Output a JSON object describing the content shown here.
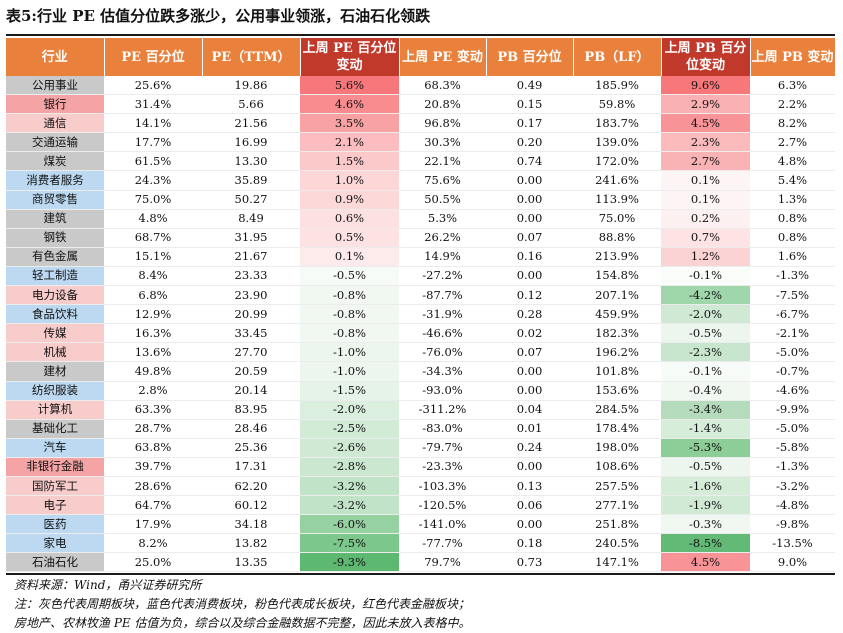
{
  "title": "表5:行业 PE 估值分位跌多涨少，公用事业领涨，石油石化领跌",
  "headers": [
    "行业",
    "PE 百分位",
    "PE（TTM）",
    "上周 PE 百分位变动",
    "上周 PE 变动",
    "PB 百分位",
    "PB（LF）",
    "上周 PB 百分位变动",
    "上周 PB 变动"
  ],
  "rows": [
    {
      "industry": "公用事业",
      "pe_pct": "25.6%",
      "pe": "19.86",
      "pe_pct_chg": "5.6%",
      "pe_chg": "68.3%",
      "pb_pct": "0.49",
      "pb": "185.9%",
      "pb_pct_chg": "9.6%",
      "pb_chg": "6.3%"
    },
    {
      "industry": "银行",
      "pe_pct": "31.4%",
      "pe": "5.66",
      "pe_pct_chg": "4.6%",
      "pe_chg": "20.8%",
      "pb_pct": "0.15",
      "pb": "59.8%",
      "pb_pct_chg": "2.9%",
      "pb_chg": "2.2%"
    },
    {
      "industry": "通信",
      "pe_pct": "14.1%",
      "pe": "21.56",
      "pe_pct_chg": "3.5%",
      "pe_chg": "96.8%",
      "pb_pct": "0.17",
      "pb": "183.7%",
      "pb_pct_chg": "4.5%",
      "pb_chg": "8.2%"
    },
    {
      "industry": "交通运输",
      "pe_pct": "17.7%",
      "pe": "16.99",
      "pe_pct_chg": "2.1%",
      "pe_chg": "30.3%",
      "pb_pct": "0.20",
      "pb": "139.0%",
      "pb_pct_chg": "2.3%",
      "pb_chg": "2.7%"
    },
    {
      "industry": "煤炭",
      "pe_pct": "61.5%",
      "pe": "13.30",
      "pe_pct_chg": "1.5%",
      "pe_chg": "22.1%",
      "pb_pct": "0.74",
      "pb": "172.0%",
      "pb_pct_chg": "2.7%",
      "pb_chg": "4.8%"
    },
    {
      "industry": "消费者服务",
      "pe_pct": "24.3%",
      "pe": "35.89",
      "pe_pct_chg": "1.0%",
      "pe_chg": "75.6%",
      "pb_pct": "0.00",
      "pb": "241.6%",
      "pb_pct_chg": "0.1%",
      "pb_chg": "5.4%"
    },
    {
      "industry": "商贸零售",
      "pe_pct": "75.0%",
      "pe": "50.27",
      "pe_pct_chg": "0.9%",
      "pe_chg": "50.5%",
      "pb_pct": "0.00",
      "pb": "113.9%",
      "pb_pct_chg": "0.1%",
      "pb_chg": "1.3%"
    },
    {
      "industry": "建筑",
      "pe_pct": "4.8%",
      "pe": "8.49",
      "pe_pct_chg": "0.6%",
      "pe_chg": "5.3%",
      "pb_pct": "0.00",
      "pb": "75.0%",
      "pb_pct_chg": "0.2%",
      "pb_chg": "0.8%"
    },
    {
      "industry": "钢铁",
      "pe_pct": "68.7%",
      "pe": "31.95",
      "pe_pct_chg": "0.5%",
      "pe_chg": "26.2%",
      "pb_pct": "0.07",
      "pb": "88.8%",
      "pb_pct_chg": "0.7%",
      "pb_chg": "0.8%"
    },
    {
      "industry": "有色金属",
      "pe_pct": "15.1%",
      "pe": "21.67",
      "pe_pct_chg": "0.1%",
      "pe_chg": "14.9%",
      "pb_pct": "0.16",
      "pb": "213.9%",
      "pb_pct_chg": "1.2%",
      "pb_chg": "1.6%"
    },
    {
      "industry": "轻工制造",
      "pe_pct": "8.4%",
      "pe": "23.33",
      "pe_pct_chg": "-0.5%",
      "pe_chg": "-27.2%",
      "pb_pct": "0.00",
      "pb": "154.8%",
      "pb_pct_chg": "-0.1%",
      "pb_chg": "-1.3%"
    },
    {
      "industry": "电力设备",
      "pe_pct": "6.8%",
      "pe": "23.90",
      "pe_pct_chg": "-0.8%",
      "pe_chg": "-87.7%",
      "pb_pct": "0.12",
      "pb": "207.1%",
      "pb_pct_chg": "-4.2%",
      "pb_chg": "-7.5%"
    },
    {
      "industry": "食品饮料",
      "pe_pct": "12.9%",
      "pe": "20.99",
      "pe_pct_chg": "-0.8%",
      "pe_chg": "-31.9%",
      "pb_pct": "0.28",
      "pb": "459.9%",
      "pb_pct_chg": "-2.0%",
      "pb_chg": "-6.7%"
    },
    {
      "industry": "传媒",
      "pe_pct": "16.3%",
      "pe": "33.45",
      "pe_pct_chg": "-0.8%",
      "pe_chg": "-46.6%",
      "pb_pct": "0.02",
      "pb": "182.3%",
      "pb_pct_chg": "-0.5%",
      "pb_chg": "-2.1%"
    },
    {
      "industry": "机械",
      "pe_pct": "13.6%",
      "pe": "27.70",
      "pe_pct_chg": "-1.0%",
      "pe_chg": "-76.0%",
      "pb_pct": "0.07",
      "pb": "196.2%",
      "pb_pct_chg": "-2.3%",
      "pb_chg": "-5.0%"
    },
    {
      "industry": "建材",
      "pe_pct": "49.8%",
      "pe": "20.59",
      "pe_pct_chg": "-1.0%",
      "pe_chg": "-34.3%",
      "pb_pct": "0.00",
      "pb": "101.8%",
      "pb_pct_chg": "-0.1%",
      "pb_chg": "-0.7%"
    },
    {
      "industry": "纺织服装",
      "pe_pct": "2.8%",
      "pe": "20.14",
      "pe_pct_chg": "-1.5%",
      "pe_chg": "-93.0%",
      "pb_pct": "0.00",
      "pb": "153.6%",
      "pb_pct_chg": "-0.4%",
      "pb_chg": "-4.6%"
    },
    {
      "industry": "计算机",
      "pe_pct": "63.3%",
      "pe": "83.95",
      "pe_pct_chg": "-2.0%",
      "pe_chg": "-311.2%",
      "pb_pct": "0.04",
      "pb": "284.5%",
      "pb_pct_chg": "-3.4%",
      "pb_chg": "-9.9%"
    },
    {
      "industry": "基础化工",
      "pe_pct": "28.7%",
      "pe": "28.46",
      "pe_pct_chg": "-2.5%",
      "pe_chg": "-83.0%",
      "pb_pct": "0.01",
      "pb": "178.4%",
      "pb_pct_chg": "-1.4%",
      "pb_chg": "-5.0%"
    },
    {
      "industry": "汽车",
      "pe_pct": "63.8%",
      "pe": "25.36",
      "pe_pct_chg": "-2.6%",
      "pe_chg": "-79.7%",
      "pb_pct": "0.24",
      "pb": "198.0%",
      "pb_pct_chg": "-5.3%",
      "pb_chg": "-5.8%"
    },
    {
      "industry": "非银行金融",
      "pe_pct": "39.7%",
      "pe": "17.31",
      "pe_pct_chg": "-2.8%",
      "pe_chg": "-23.3%",
      "pb_pct": "0.00",
      "pb": "108.6%",
      "pb_pct_chg": "-0.5%",
      "pb_chg": "-1.3%"
    },
    {
      "industry": "国防军工",
      "pe_pct": "28.6%",
      "pe": "62.20",
      "pe_pct_chg": "-3.2%",
      "pe_chg": "-103.3%",
      "pb_pct": "0.13",
      "pb": "257.5%",
      "pb_pct_chg": "-1.6%",
      "pb_chg": "-3.2%"
    },
    {
      "industry": "电子",
      "pe_pct": "64.7%",
      "pe": "60.12",
      "pe_pct_chg": "-3.2%",
      "pe_chg": "-120.5%",
      "pb_pct": "0.06",
      "pb": "277.1%",
      "pb_pct_chg": "-1.9%",
      "pb_chg": "-4.8%"
    },
    {
      "industry": "医药",
      "pe_pct": "17.9%",
      "pe": "34.18",
      "pe_pct_chg": "-6.0%",
      "pe_chg": "-141.0%",
      "pb_pct": "0.00",
      "pb": "251.8%",
      "pb_pct_chg": "-0.3%",
      "pb_chg": "-9.8%"
    },
    {
      "industry": "家电",
      "pe_pct": "8.2%",
      "pe": "13.82",
      "pe_pct_chg": "-7.5%",
      "pe_chg": "-77.7%",
      "pb_pct": "0.18",
      "pb": "240.5%",
      "pb_pct_chg": "-8.5%",
      "pb_chg": "-13.5%"
    },
    {
      "industry": "石油石化",
      "pe_pct": "25.0%",
      "pe": "13.35",
      "pe_pct_chg": "-9.3%",
      "pe_chg": "79.7%",
      "pb_pct": "0.73",
      "pb": "147.1%",
      "pb_pct_chg": "4.5%",
      "pb_chg": "9.0%"
    }
  ],
  "industry_colors": [
    "#c9c9c9",
    "#f4a4a4",
    "#f9cccc",
    "#c9c9c9",
    "#c9c9c9",
    "#bcd9f1",
    "#bcd9f1",
    "#c9c9c9",
    "#c9c9c9",
    "#c9c9c9",
    "#bcd9f1",
    "#f9cccc",
    "#bcd9f1",
    "#f9cccc",
    "#f9cccc",
    "#c9c9c9",
    "#bcd9f1",
    "#f9cccc",
    "#c9c9c9",
    "#bcd9f1",
    "#f4a4a4",
    "#f9cccc",
    "#f9cccc",
    "#bcd9f1",
    "#bcd9f1",
    "#c9c9c9"
  ],
  "pe_pct_chg_colors": [
    "#f7777b",
    "#f88c8f",
    "#f9a2a4",
    "#fbbdbf",
    "#fcc9ca",
    "#fdd6d7",
    "#fdd8d9",
    "#fde0e0",
    "#fde2e3",
    "#fdeaea",
    "#f7fbf7",
    "#f1f8f2",
    "#f1f8f2",
    "#f1f8f2",
    "#ecf6ee",
    "#ecf6ee",
    "#e5f3e8",
    "#dbefdf",
    "#d2eb d7",
    "#cfe9d4",
    "#cbe7d0",
    "#c1e3c8",
    "#c1e3c8",
    "#96d1a2",
    "#7cc78c",
    "#5db872"
  ],
  "pb_pct_chg_colors": [
    "#f7777b",
    "#fab1b3",
    "#f89497",
    "#fbbbbd",
    "#fab3b5",
    "#fdf5f5",
    "#fdf5f5",
    "#fdf0f0",
    "#fde3e4",
    "#fcd3d4",
    "#fbfdfb",
    "#9fd6aa",
    "#cfe9d4",
    "#ecf6ee",
    "#c8e6cd",
    "#f7fbf7",
    "#f1f8f2",
    "#b4dcbc",
    "#d6edda",
    "#8ccd98",
    "#ecf6ee",
    "#d4ecd8",
    "#d0ead5",
    "#f1f8f2",
    "#62ba76",
    "#f89497"
  ],
  "source": "资料来源：Wind，甬兴证券研究所",
  "note_line1": "注：灰色代表周期板块，蓝色代表消费板块，粉色代表成长板块，红色代表金融板块；",
  "note_line2": "房地产、农林牧渔 PE 估值为负，综合以及综合金融数据不完整，因此未放入表格中。"
}
